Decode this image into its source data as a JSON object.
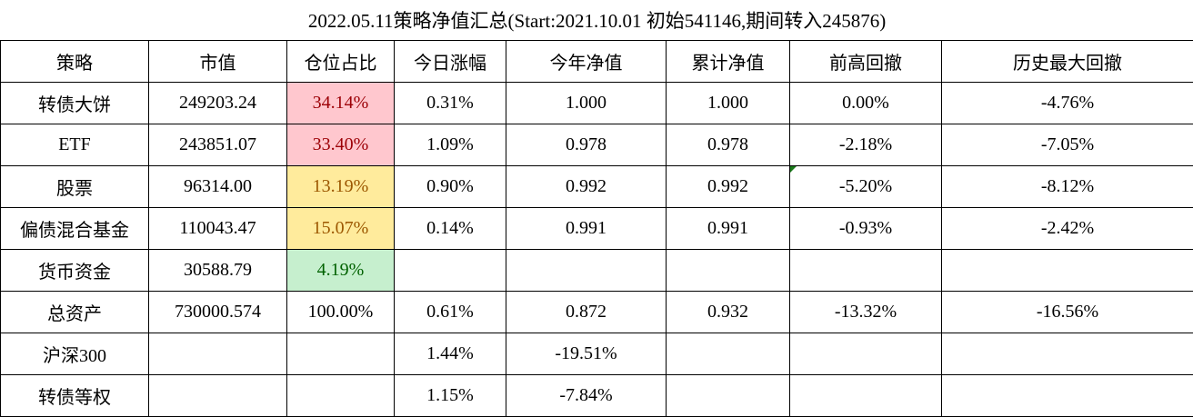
{
  "title": "2022.05.11策略净值汇总(Start:2021.10.01 初始541146,期间转入245876)",
  "headers": [
    "策略",
    "市值",
    "仓位占比",
    "今日涨幅",
    "今年净值",
    "累计净值",
    "前高回撤",
    "历史最大回撤"
  ],
  "rows": [
    {
      "cells": [
        "转债大饼",
        "249203.24",
        "34.14%",
        "0.31%",
        "1.000",
        "1.000",
        "0.00%",
        "-4.76%"
      ],
      "ratio_style": "bad"
    },
    {
      "cells": [
        "ETF",
        "243851.07",
        "33.40%",
        "1.09%",
        "0.978",
        "0.978",
        "-2.18%",
        "-7.05%"
      ],
      "ratio_style": "bad"
    },
    {
      "cells": [
        "股票",
        "96314.00",
        "13.19%",
        "0.90%",
        "0.992",
        "0.992",
        "-5.20%",
        "-8.12%"
      ],
      "ratio_style": "neutral"
    },
    {
      "cells": [
        "偏债混合基金",
        "110043.47",
        "15.07%",
        "0.14%",
        "0.991",
        "0.991",
        "-0.93%",
        "-2.42%"
      ],
      "ratio_style": "neutral"
    },
    {
      "cells": [
        "货币资金",
        "30588.79",
        "4.19%",
        "",
        "",
        "",
        "",
        ""
      ],
      "ratio_style": "good"
    },
    {
      "cells": [
        "总资产",
        "730000.574",
        "100.00%",
        "0.61%",
        "0.872",
        "0.932",
        "-13.32%",
        "-16.56%"
      ],
      "ratio_style": ""
    },
    {
      "cells": [
        "沪深300",
        "",
        "",
        "1.44%",
        "-19.51%",
        "",
        "",
        ""
      ],
      "ratio_style": ""
    },
    {
      "cells": [
        "转债等权",
        "",
        "",
        "1.15%",
        "-7.84%",
        "",
        "",
        ""
      ],
      "ratio_style": ""
    }
  ],
  "colors": {
    "bad_fill": "#FFC7CE",
    "bad_text": "#9C0006",
    "neutral_fill": "#FFEB9C",
    "neutral_text": "#9C5700",
    "good_fill": "#C6EFCE",
    "good_text": "#006100"
  }
}
